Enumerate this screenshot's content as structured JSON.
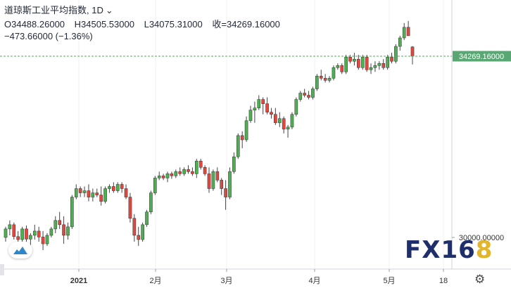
{
  "header": {
    "symbol": "道琼斯工业平均指数",
    "interval": ", 1D",
    "open": "O34488.26000",
    "high": "H34505.53000",
    "low": "L34075.31000",
    "close": "收=34269.16000",
    "change": "−473.66000 (−1.36%)"
  },
  "watermark": {
    "main": "FX16",
    "highlight": "8"
  },
  "colors": {
    "up": "#4caf50",
    "down": "#e0473f",
    "price_line": "#4caf50",
    "price_label_bg": "#59a874"
  },
  "chart_data": {
    "type": "candlestick",
    "price_tag": "34269.16000",
    "y_tick_labels": [
      {
        "value": 30000,
        "label": "30000.00000"
      }
    ],
    "x_tick_labels": [
      "2021",
      "2月",
      "3月",
      "4月",
      "5月",
      "18"
    ],
    "ohlc_approx": [
      {
        "o": 30000,
        "h": 30250,
        "l": 29900,
        "c": 30200
      },
      {
        "o": 30200,
        "h": 30400,
        "l": 30050,
        "c": 30300
      },
      {
        "o": 30300,
        "h": 30350,
        "l": 29950,
        "c": 30020
      },
      {
        "o": 30020,
        "h": 30150,
        "l": 29800,
        "c": 29950
      },
      {
        "o": 29950,
        "h": 30250,
        "l": 29900,
        "c": 30200
      },
      {
        "o": 30200,
        "h": 30280,
        "l": 29900,
        "c": 29960
      },
      {
        "o": 29960,
        "h": 30100,
        "l": 29750,
        "c": 30050
      },
      {
        "o": 30050,
        "h": 30300,
        "l": 29950,
        "c": 30150
      },
      {
        "o": 30150,
        "h": 30250,
        "l": 29900,
        "c": 30010
      },
      {
        "o": 30010,
        "h": 30150,
        "l": 29700,
        "c": 29850
      },
      {
        "o": 29850,
        "h": 30100,
        "l": 29800,
        "c": 30050
      },
      {
        "o": 30050,
        "h": 30250,
        "l": 30000,
        "c": 30200
      },
      {
        "o": 30200,
        "h": 30500,
        "l": 30100,
        "c": 30400
      },
      {
        "o": 30400,
        "h": 30600,
        "l": 30200,
        "c": 30300
      },
      {
        "o": 30300,
        "h": 30500,
        "l": 29850,
        "c": 30050
      },
      {
        "o": 30050,
        "h": 30350,
        "l": 29950,
        "c": 30250
      },
      {
        "o": 30250,
        "h": 31000,
        "l": 30200,
        "c": 30950
      },
      {
        "o": 30950,
        "h": 31250,
        "l": 30900,
        "c": 31150
      },
      {
        "o": 31150,
        "h": 31200,
        "l": 30950,
        "c": 31050
      },
      {
        "o": 31050,
        "h": 31200,
        "l": 30950,
        "c": 31100
      },
      {
        "o": 31100,
        "h": 31250,
        "l": 30850,
        "c": 30950
      },
      {
        "o": 30950,
        "h": 31150,
        "l": 30850,
        "c": 31050
      },
      {
        "o": 31050,
        "h": 31150,
        "l": 30950,
        "c": 31000
      },
      {
        "o": 31000,
        "h": 31200,
        "l": 30750,
        "c": 30850
      },
      {
        "o": 30850,
        "h": 31200,
        "l": 30800,
        "c": 31150
      },
      {
        "o": 31150,
        "h": 31250,
        "l": 31050,
        "c": 31200
      },
      {
        "o": 31200,
        "h": 31300,
        "l": 31050,
        "c": 31100
      },
      {
        "o": 31100,
        "h": 31300,
        "l": 31050,
        "c": 31250
      },
      {
        "o": 31250,
        "h": 31300,
        "l": 31050,
        "c": 31150
      },
      {
        "o": 31150,
        "h": 31250,
        "l": 30900,
        "c": 30950
      },
      {
        "o": 30950,
        "h": 31050,
        "l": 30350,
        "c": 30450
      },
      {
        "o": 30450,
        "h": 30550,
        "l": 29900,
        "c": 30050
      },
      {
        "o": 30050,
        "h": 30250,
        "l": 29800,
        "c": 29950
      },
      {
        "o": 29950,
        "h": 30350,
        "l": 29900,
        "c": 30300
      },
      {
        "o": 30300,
        "h": 30650,
        "l": 30250,
        "c": 30600
      },
      {
        "o": 30600,
        "h": 31100,
        "l": 30550,
        "c": 31050
      },
      {
        "o": 31050,
        "h": 31450,
        "l": 31000,
        "c": 31400
      },
      {
        "o": 31400,
        "h": 31550,
        "l": 31350,
        "c": 31450
      },
      {
        "o": 31450,
        "h": 31500,
        "l": 31350,
        "c": 31400
      },
      {
        "o": 31400,
        "h": 31550,
        "l": 31300,
        "c": 31500
      },
      {
        "o": 31500,
        "h": 31550,
        "l": 31380,
        "c": 31450
      },
      {
        "o": 31450,
        "h": 31600,
        "l": 31400,
        "c": 31550
      },
      {
        "o": 31550,
        "h": 31650,
        "l": 31450,
        "c": 31500
      },
      {
        "o": 31500,
        "h": 31650,
        "l": 31450,
        "c": 31600
      },
      {
        "o": 31600,
        "h": 31700,
        "l": 31500,
        "c": 31550
      },
      {
        "o": 31550,
        "h": 31650,
        "l": 31450,
        "c": 31500
      },
      {
        "o": 31500,
        "h": 31850,
        "l": 31400,
        "c": 31800
      },
      {
        "o": 31800,
        "h": 31850,
        "l": 31600,
        "c": 31650
      },
      {
        "o": 31650,
        "h": 31700,
        "l": 31450,
        "c": 31500
      },
      {
        "o": 31500,
        "h": 31650,
        "l": 31050,
        "c": 31150
      },
      {
        "o": 31150,
        "h": 31600,
        "l": 31100,
        "c": 31550
      },
      {
        "o": 31550,
        "h": 31650,
        "l": 31300,
        "c": 31350
      },
      {
        "o": 31350,
        "h": 31400,
        "l": 31000,
        "c": 31150
      },
      {
        "o": 31150,
        "h": 31350,
        "l": 30650,
        "c": 30950
      },
      {
        "o": 30950,
        "h": 31650,
        "l": 30900,
        "c": 31550
      },
      {
        "o": 31550,
        "h": 32000,
        "l": 31500,
        "c": 31900
      },
      {
        "o": 31900,
        "h": 32450,
        "l": 31850,
        "c": 32400
      },
      {
        "o": 32400,
        "h": 32500,
        "l": 32100,
        "c": 32300
      },
      {
        "o": 32300,
        "h": 32850,
        "l": 32250,
        "c": 32750
      },
      {
        "o": 32750,
        "h": 33100,
        "l": 32700,
        "c": 33000
      },
      {
        "o": 33000,
        "h": 33200,
        "l": 32700,
        "c": 33050
      },
      {
        "o": 33050,
        "h": 33350,
        "l": 33000,
        "c": 33250
      },
      {
        "o": 33250,
        "h": 33300,
        "l": 32900,
        "c": 33150
      },
      {
        "o": 33150,
        "h": 33300,
        "l": 32900,
        "c": 32950
      },
      {
        "o": 32950,
        "h": 33050,
        "l": 32800,
        "c": 32900
      },
      {
        "o": 32900,
        "h": 33050,
        "l": 32650,
        "c": 32700
      },
      {
        "o": 32700,
        "h": 32950,
        "l": 32600,
        "c": 32800
      },
      {
        "o": 32800,
        "h": 32850,
        "l": 32450,
        "c": 32550
      },
      {
        "o": 32550,
        "h": 32650,
        "l": 32350,
        "c": 32600
      },
      {
        "o": 32600,
        "h": 32950,
        "l": 32550,
        "c": 32900
      },
      {
        "o": 32900,
        "h": 33300,
        "l": 32850,
        "c": 33250
      },
      {
        "o": 33250,
        "h": 33450,
        "l": 33200,
        "c": 33400
      },
      {
        "o": 33400,
        "h": 33500,
        "l": 33300,
        "c": 33350
      },
      {
        "o": 33350,
        "h": 33450,
        "l": 33250,
        "c": 33300
      },
      {
        "o": 33300,
        "h": 33550,
        "l": 33250,
        "c": 33500
      },
      {
        "o": 33500,
        "h": 33850,
        "l": 33450,
        "c": 33800
      },
      {
        "o": 33800,
        "h": 33950,
        "l": 33700,
        "c": 33750
      },
      {
        "o": 33750,
        "h": 33850,
        "l": 33650,
        "c": 33700
      },
      {
        "o": 33700,
        "h": 33800,
        "l": 33650,
        "c": 33750
      },
      {
        "o": 33750,
        "h": 34050,
        "l": 33700,
        "c": 34000
      },
      {
        "o": 34000,
        "h": 34100,
        "l": 33950,
        "c": 34050
      },
      {
        "o": 34050,
        "h": 34100,
        "l": 33850,
        "c": 33900
      },
      {
        "o": 33900,
        "h": 34300,
        "l": 33850,
        "c": 34250
      },
      {
        "o": 34250,
        "h": 34300,
        "l": 34100,
        "c": 34150
      },
      {
        "o": 34150,
        "h": 34350,
        "l": 34050,
        "c": 34200
      },
      {
        "o": 34200,
        "h": 34300,
        "l": 33950,
        "c": 34000
      },
      {
        "o": 34000,
        "h": 34300,
        "l": 33950,
        "c": 34250
      },
      {
        "o": 34250,
        "h": 34300,
        "l": 33900,
        "c": 33950
      },
      {
        "o": 33950,
        "h": 34100,
        "l": 33850,
        "c": 34000
      },
      {
        "o": 34000,
        "h": 34150,
        "l": 33900,
        "c": 34050
      },
      {
        "o": 34050,
        "h": 34150,
        "l": 33950,
        "c": 34100
      },
      {
        "o": 34100,
        "h": 34200,
        "l": 33950,
        "c": 34000
      },
      {
        "o": 34000,
        "h": 34300,
        "l": 33950,
        "c": 34250
      },
      {
        "o": 34250,
        "h": 34350,
        "l": 34100,
        "c": 34150
      },
      {
        "o": 34150,
        "h": 34550,
        "l": 34100,
        "c": 34500
      },
      {
        "o": 34500,
        "h": 34750,
        "l": 34400,
        "c": 34700
      },
      {
        "o": 34700,
        "h": 35050,
        "l": 34650,
        "c": 34950
      },
      {
        "o": 34950,
        "h": 35100,
        "l": 34850,
        "c": 34750
      },
      {
        "o": 34488.26,
        "h": 34505.53,
        "l": 34075.31,
        "c": 34269.16
      }
    ]
  }
}
